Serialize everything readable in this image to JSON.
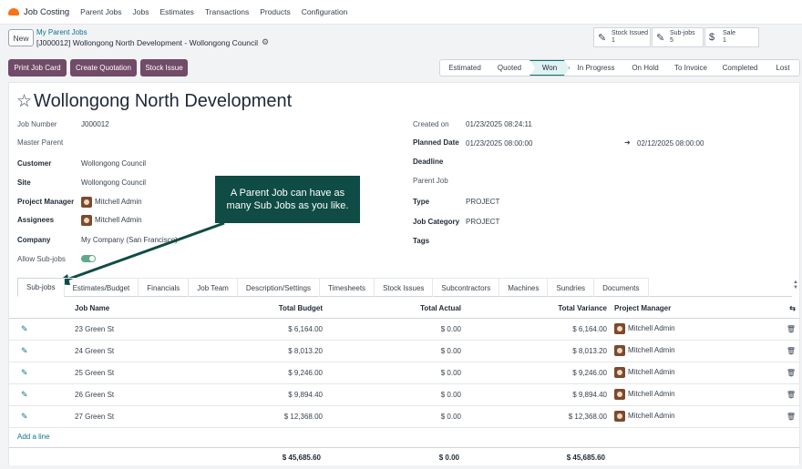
{
  "nav": {
    "app_name": "Job Costing",
    "menu": [
      "Parent Jobs",
      "Jobs",
      "Estimates",
      "Transactions",
      "Products",
      "Configuration"
    ]
  },
  "control": {
    "new_label": "New",
    "breadcrumb_link": "My Parent Jobs",
    "breadcrumb_current": "[J000012] Wollongong North Development - Wollongong Council",
    "stats": [
      {
        "icon": "edit-icon",
        "label": "Stock Issued",
        "value": "1"
      },
      {
        "icon": "edit-icon",
        "label": "Sub-jobs",
        "value": "5"
      },
      {
        "icon": "dollar-icon",
        "label": "Sale",
        "value": "1"
      }
    ]
  },
  "actions": {
    "print": "Print Job Card",
    "quote": "Create Quotation",
    "stock": "Stock Issue"
  },
  "statusbar": [
    "Estimated",
    "Quoted",
    "Won",
    "In Progress",
    "On Hold",
    "To Invoice",
    "Completed",
    "Lost"
  ],
  "statusbar_active": "Won",
  "record": {
    "title": "Wollongong North Development",
    "left": {
      "job_number_label": "Job Number",
      "job_number": "J000012",
      "master_parent_label": "Master Parent",
      "customer_label": "Customer",
      "customer": "Wollongong Council",
      "site_label": "Site",
      "site": "Wollongong Council",
      "pm_label": "Project Manager",
      "pm": "Mitchell Admin",
      "assignees_label": "Assignees",
      "assignee": "Mitchell Admin",
      "company_label": "Company",
      "company": "My Company (San Francisco)",
      "allow_label": "Allow Sub-jobs"
    },
    "right": {
      "created_label": "Created on",
      "created": "01/23/2025 08:24:11",
      "planned_label": "Planned Date",
      "planned_start": "01/23/2025 08:00:00",
      "planned_end": "02/12/2025 08:00:00",
      "deadline_label": "Deadline",
      "parent_label": "Parent Job",
      "type_label": "Type",
      "type": "PROJECT",
      "category_label": "Job Category",
      "category": "PROJECT",
      "tags_label": "Tags"
    }
  },
  "callout": "A Parent Job can have as many Sub Jobs as you like.",
  "tabs": [
    "Sub-jobs",
    "Estimates/Budget",
    "Financials",
    "Job Team",
    "Description/Settings",
    "Timesheets",
    "Stock Issues",
    "Subcontractors",
    "Machines",
    "Sundries",
    "Documents"
  ],
  "table": {
    "headers": {
      "name": "Job Name",
      "budget": "Total Budget",
      "actual": "Total Actual",
      "variance": "Total Variance",
      "pm": "Project Manager"
    },
    "rows": [
      {
        "name": "23 Green St",
        "budget": "$ 6,164.00",
        "actual": "$ 0.00",
        "variance": "$ 6,164.00",
        "pm": "Mitchell Admin"
      },
      {
        "name": "24 Green St",
        "budget": "$ 8,013.20",
        "actual": "$ 0.00",
        "variance": "$ 8,013.20",
        "pm": "Mitchell Admin"
      },
      {
        "name": "25 Green St",
        "budget": "$ 9,246.00",
        "actual": "$ 0.00",
        "variance": "$ 9,246.00",
        "pm": "Mitchell Admin"
      },
      {
        "name": "26 Green St",
        "budget": "$ 9,894.40",
        "actual": "$ 0.00",
        "variance": "$ 9,894.40",
        "pm": "Mitchell Admin"
      },
      {
        "name": "27 Green St",
        "budget": "$ 12,368.00",
        "actual": "$ 0.00",
        "variance": "$ 12,368.00",
        "pm": "Mitchell Admin"
      }
    ],
    "add_line": "Add a line",
    "totals": {
      "budget": "$ 45,685.60",
      "actual": "$ 0.00",
      "variance": "$ 45,685.60"
    }
  },
  "colors": {
    "primary": "#714b67",
    "link": "#0e7490",
    "callout": "#0f4c45",
    "active_stage": "#e0f2f1"
  }
}
